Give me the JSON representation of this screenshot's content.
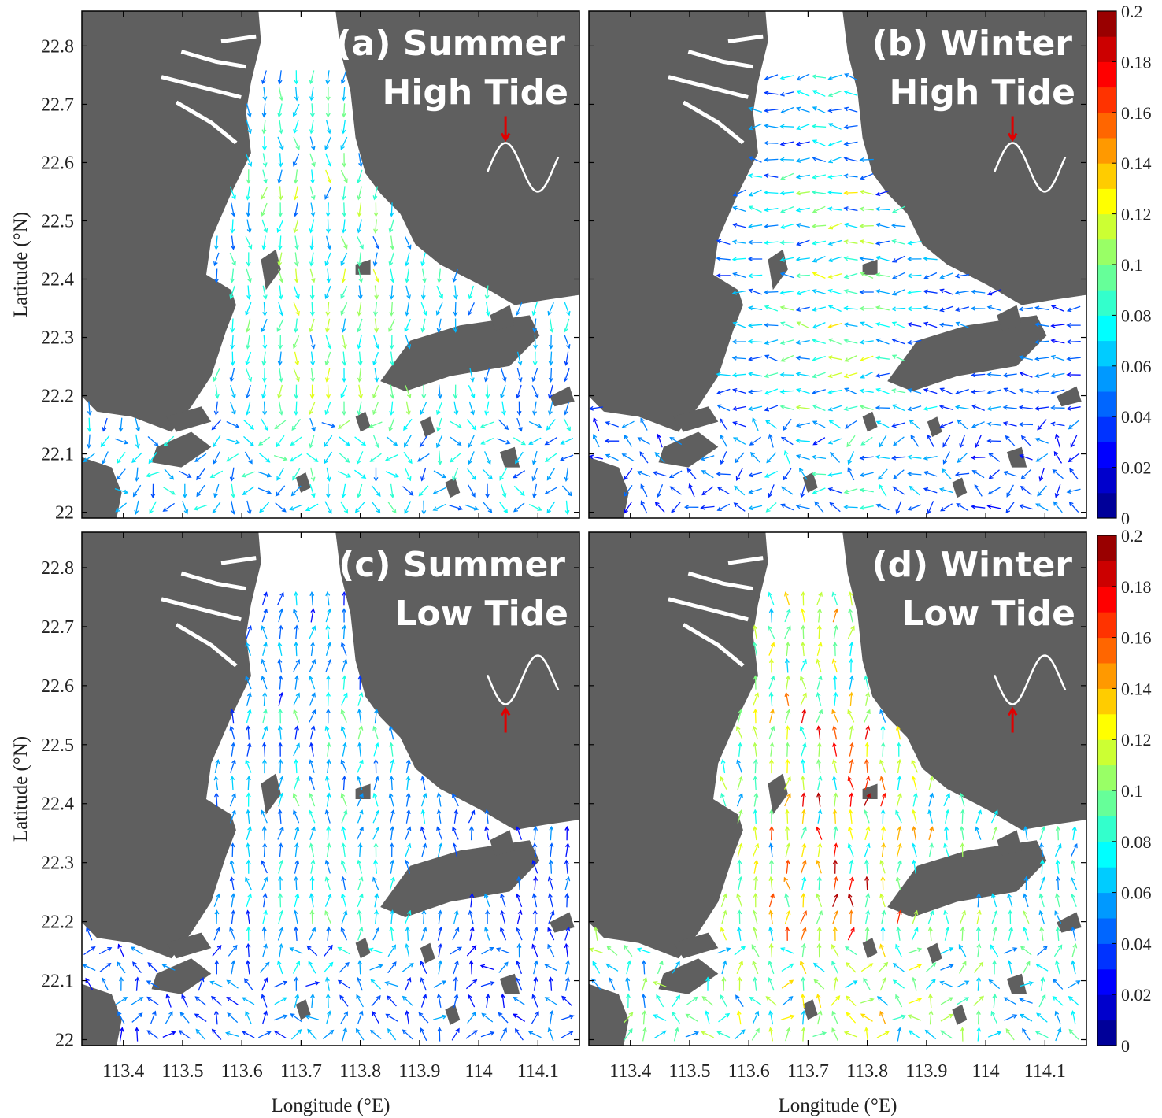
{
  "chart_data": {
    "type": "vector-field",
    "xlabel": "Longitude (°E)",
    "ylabel": "Latitude (°N)",
    "x_ticks": [
      113.4,
      113.5,
      113.6,
      113.7,
      113.8,
      113.9,
      114,
      114.1
    ],
    "x_tick_labels": [
      "113.4",
      "113.5",
      "113.6",
      "113.7",
      "113.8",
      "113.9",
      "114",
      "114.1"
    ],
    "y_ticks": [
      22,
      22.1,
      22.2,
      22.3,
      22.4,
      22.5,
      22.6,
      22.7,
      22.8
    ],
    "y_tick_labels": [
      "22",
      "22.1",
      "22.2",
      "22.3",
      "22.4",
      "22.5",
      "22.6",
      "22.7",
      "22.8"
    ],
    "xlim": [
      113.33,
      114.17
    ],
    "ylim": [
      21.99,
      22.86
    ],
    "colorbar": {
      "range": [
        0,
        0.2
      ],
      "ticks": [
        0,
        0.02,
        0.04,
        0.06,
        0.08,
        0.1,
        0.12,
        0.14,
        0.16,
        0.18,
        0.2
      ],
      "tick_labels": [
        "0",
        "0.02",
        "0.04",
        "0.06",
        "0.08",
        "0.1",
        "0.12",
        "0.14",
        "0.16",
        "0.18",
        "0.2"
      ],
      "colormap": "jet"
    },
    "colors": {
      "land": "#5f5f5f",
      "water": "#ffffff",
      "tide_curve": "#ffffff",
      "tide_marker": "#e00000"
    },
    "panels": [
      {
        "id": "a",
        "title_line1": "(a) Summer",
        "title_line2": "High Tide",
        "tide_phase": "high",
        "flow": "southward",
        "speed_mean": 0.06,
        "speed_max": 0.12
      },
      {
        "id": "b",
        "title_line1": "(b) Winter",
        "title_line2": "High Tide",
        "tide_phase": "high",
        "flow": "westward",
        "speed_mean": 0.04,
        "speed_max": 0.13
      },
      {
        "id": "c",
        "title_line1": "(c) Summer",
        "title_line2": "Low Tide",
        "tide_phase": "low",
        "flow": "northward",
        "speed_mean": 0.04,
        "speed_max": 0.1
      },
      {
        "id": "d",
        "title_line1": "(d) Winter",
        "title_line2": "Low Tide",
        "tide_phase": "low",
        "flow": "northward",
        "speed_mean": 0.08,
        "speed_max": 0.19
      }
    ]
  }
}
